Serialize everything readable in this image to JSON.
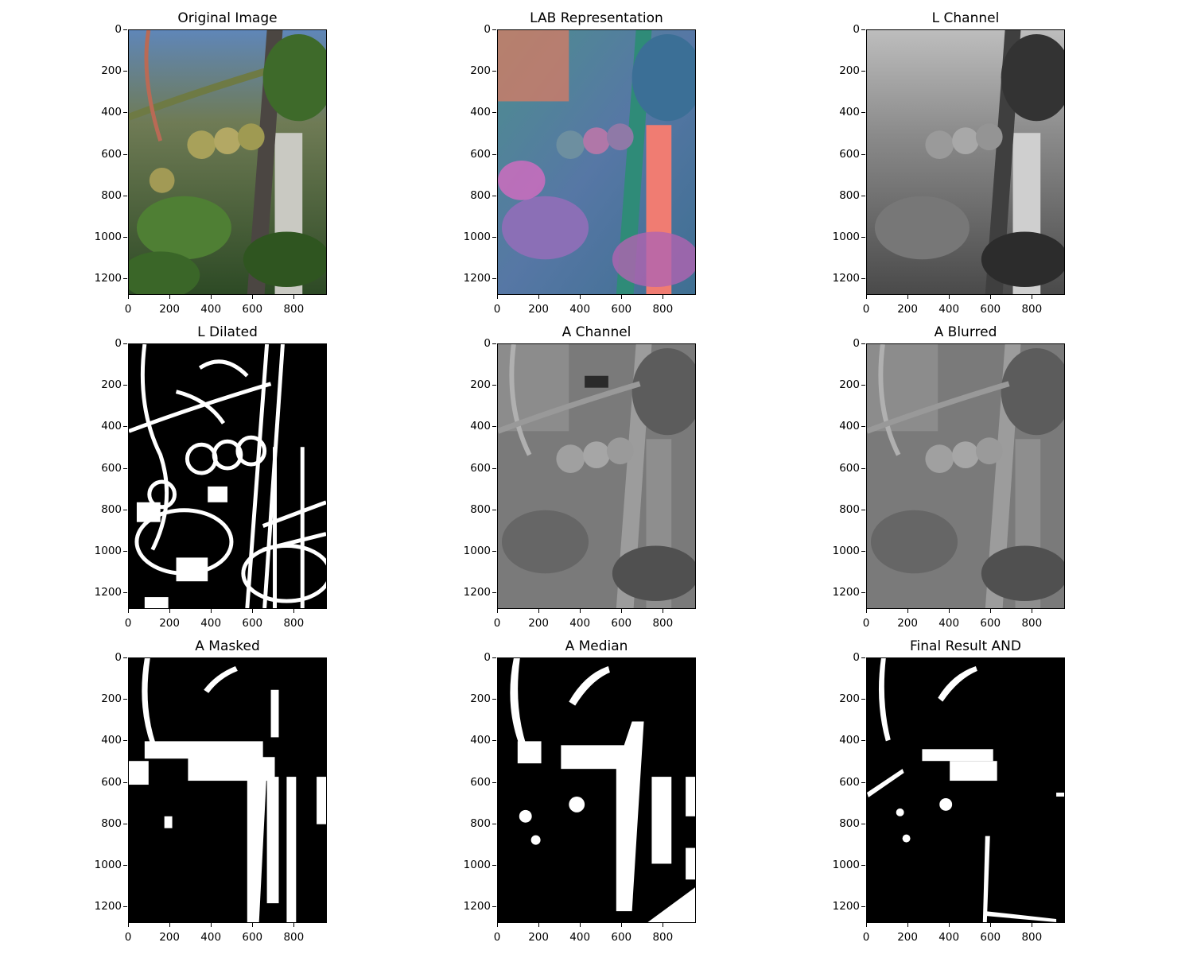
{
  "figure": {
    "panels": [
      {
        "id": "original",
        "title": "Original Image"
      },
      {
        "id": "lab",
        "title": "LAB Representation"
      },
      {
        "id": "lchannel",
        "title": "L Channel"
      },
      {
        "id": "ldilated",
        "title": "L Dilated"
      },
      {
        "id": "achannel",
        "title": "A Channel"
      },
      {
        "id": "ablurred",
        "title": "A Blurred"
      },
      {
        "id": "amasked",
        "title": "A Masked"
      },
      {
        "id": "amedian",
        "title": "A Median"
      },
      {
        "id": "final",
        "title": "Final Result AND"
      }
    ],
    "yticks": [
      "0",
      "200",
      "400",
      "600",
      "800",
      "1000",
      "1200"
    ],
    "xticks": [
      "0",
      "200",
      "400",
      "600",
      "800"
    ]
  },
  "chart_data": {
    "type": "image_grid",
    "rows": 3,
    "cols": 3,
    "x_range": [
      0,
      960
    ],
    "y_range": [
      1280,
      0
    ],
    "ytick_values": [
      0,
      200,
      400,
      600,
      800,
      1000,
      1200
    ],
    "xtick_values": [
      0,
      200,
      400,
      600,
      800
    ]
  }
}
